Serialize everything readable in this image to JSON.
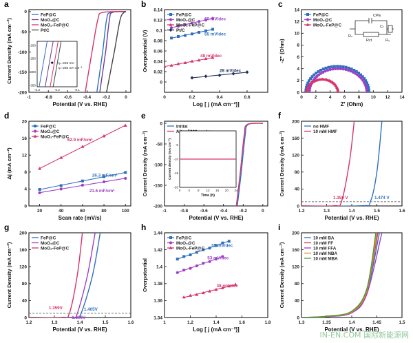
{
  "watermark": {
    "text": "IN-EN.COM 国际新能源网"
  },
  "chart_data": [
    {
      "panel": "a",
      "type": "line",
      "xlabel": "Potential (V vs. RHE)",
      "ylabel": "Current Density (mA cm⁻²)",
      "xlim": [
        -1.0,
        0.05
      ],
      "ylim": [
        -200,
        5
      ],
      "xticks": [
        -1.0,
        -0.8,
        -0.6,
        -0.4,
        -0.2,
        0.0
      ],
      "yticks": [
        0,
        -50,
        -100,
        -150,
        -200
      ],
      "legend": "top-left",
      "series": [
        {
          "name": "FeP@C",
          "color": "#2f6fbf",
          "points": [
            [
              -0.3,
              -200
            ],
            [
              -0.24,
              -100
            ],
            [
              -0.2,
              -20
            ],
            [
              -0.16,
              -2
            ],
            [
              0.0,
              0
            ]
          ]
        },
        {
          "name": "MoO₂@C",
          "color": "#6a3a9a",
          "points": [
            [
              -0.27,
              -200
            ],
            [
              -0.21,
              -100
            ],
            [
              -0.17,
              -20
            ],
            [
              -0.14,
              -2
            ],
            [
              0.0,
              0
            ]
          ]
        },
        {
          "name": "MoO₂-FeP@C",
          "color": "#d6336c",
          "points": [
            [
              -0.42,
              -200
            ],
            [
              -0.35,
              -100
            ],
            [
              -0.29,
              -20
            ],
            [
              -0.24,
              -2
            ],
            [
              0.0,
              0
            ]
          ]
        },
        {
          "name": "Pt/C",
          "color": "#444444",
          "points": [
            [
              -0.2,
              -200
            ],
            [
              -0.12,
              -100
            ],
            [
              -0.06,
              -20
            ],
            [
              -0.02,
              -2
            ],
            [
              0.0,
              0
            ]
          ]
        }
      ],
      "inset": {
        "xlim": [
          -0.3,
          -0.1
        ],
        "ylim": [
          -355,
          -185
        ],
        "xticks": [
          -0.3,
          -0.2,
          -0.1
        ],
        "yticks": [
          -200,
          -250,
          -300,
          -350
        ],
        "annotations": [
          "η=-225 mV",
          "η=-265 mA cm⁻²"
        ]
      }
    },
    {
      "panel": "b",
      "type": "scatter",
      "xlabel": "Log [ j (mA cm⁻²)]",
      "ylabel": "Overpotential (V)",
      "xlim": [
        0.0,
        0.75
      ],
      "ylim": [
        -0.02,
        0.14
      ],
      "xticks": [
        0.0,
        0.2,
        0.4,
        0.6
      ],
      "yticks": [
        0.0,
        0.02,
        0.04,
        0.06,
        0.08,
        0.1,
        0.12,
        0.14
      ],
      "legend": "top-left",
      "series": [
        {
          "name": "FeP@C",
          "color": "#2f6fbf",
          "label": "55 mV/dec",
          "x": [
            0.05,
            0.1,
            0.15,
            0.2,
            0.25,
            0.3,
            0.35
          ],
          "y": [
            0.085,
            0.088,
            0.09,
            0.093,
            0.096,
            0.099,
            0.102
          ]
        },
        {
          "name": "MoO₂@C",
          "color": "#9b3fc6",
          "label": "60 mV/dec",
          "x": [
            0.05,
            0.1,
            0.15,
            0.2,
            0.25,
            0.3,
            0.35
          ],
          "y": [
            0.105,
            0.108,
            0.111,
            0.114,
            0.117,
            0.12,
            0.123
          ]
        },
        {
          "name": "MoO₂-FeP@C",
          "color": "#d6336c",
          "label": "48 mV/dec",
          "x": [
            0.0,
            0.05,
            0.1,
            0.15,
            0.2,
            0.25,
            0.3,
            0.35
          ],
          "y": [
            0.03,
            0.032,
            0.035,
            0.037,
            0.04,
            0.042,
            0.045,
            0.047
          ]
        },
        {
          "name": "Pt/C",
          "color": "#1f2d5a",
          "label": "28 mV/dec",
          "x": [
            0.2,
            0.3,
            0.4,
            0.5,
            0.6
          ],
          "y": [
            0.008,
            0.011,
            0.013,
            0.016,
            0.019
          ]
        }
      ]
    },
    {
      "panel": "c",
      "type": "scatter",
      "xlabel": "Z' (Ohm)",
      "ylabel": "-Z'' (Ohm)",
      "xlim": [
        0,
        14
      ],
      "ylim": [
        0,
        14
      ],
      "xticks": [
        0,
        2,
        4,
        6,
        8,
        10,
        12,
        14
      ],
      "yticks": [
        0,
        2,
        4,
        6,
        8,
        10,
        12,
        14
      ],
      "legend": "top-left",
      "circuit": [
        "CPE",
        "Cₜ",
        "Rₛ",
        "Rct",
        "R₀"
      ],
      "series": [
        {
          "name": "FeP@C",
          "color": "#2f6fbf",
          "center": 5.0,
          "radius": 4.4
        },
        {
          "name": "MoO₂@C",
          "color": "#9b3fc6",
          "center": 5.1,
          "radius": 4.0
        },
        {
          "name": "MoO₂-FeP@C",
          "color": "#d6336c",
          "center": 2.9,
          "radius": 2.2
        }
      ]
    },
    {
      "panel": "d",
      "type": "scatter",
      "xlabel": "Scan rate (mV/s)",
      "ylabel": "Δj (mA cm⁻²)",
      "xlim": [
        10,
        105
      ],
      "ylim": [
        0,
        20
      ],
      "xticks": [
        20,
        40,
        60,
        80,
        100
      ],
      "yticks": [
        0,
        4,
        8,
        12,
        16,
        20
      ],
      "legend": "top-left",
      "series": [
        {
          "name": "FeP@C",
          "color": "#2f6fbf",
          "label": "26.3 mF/cm²",
          "x": [
            20,
            40,
            60,
            80,
            100
          ],
          "y": [
            3.9,
            4.8,
            5.9,
            6.9,
            7.9
          ]
        },
        {
          "name": "MoO₂@C",
          "color": "#9b3fc6",
          "label": "21.6 mF/cm²",
          "x": [
            20,
            40,
            60,
            80,
            100
          ],
          "y": [
            3.1,
            4.0,
            4.9,
            5.7,
            6.5
          ]
        },
        {
          "name": "MoO₂-FeP@C",
          "color": "#d6336c",
          "label": "62.9 mF/cm²",
          "x": [
            20,
            40,
            60,
            80,
            100
          ],
          "y": [
            8.8,
            11.4,
            14.0,
            16.5,
            19.0
          ]
        }
      ]
    },
    {
      "panel": "e",
      "type": "line",
      "xlabel": "Potential (V vs. RHE)",
      "ylabel": "Current Density (mA cm⁻²)",
      "xlim": [
        -1.0,
        0.05
      ],
      "ylim": [
        -200,
        5
      ],
      "xticks": [
        -1.0,
        -0.8,
        -0.6,
        -0.4,
        -0.2,
        0.0
      ],
      "yticks": [
        0,
        -50,
        -100,
        -150,
        -200
      ],
      "legend": "top-left",
      "series": [
        {
          "name": "Initial",
          "color": "#2f6fbf",
          "points": [
            [
              -0.26,
              -200
            ],
            [
              -0.22,
              -120
            ],
            [
              -0.18,
              -30
            ],
            [
              -0.15,
              -3
            ],
            [
              0.0,
              0
            ]
          ]
        },
        {
          "name": "After 5000 cycles",
          "color": "#d6336c",
          "points": [
            [
              -0.27,
              -200
            ],
            [
              -0.23,
              -120
            ],
            [
              -0.19,
              -30
            ],
            [
              -0.16,
              -3
            ],
            [
              0.0,
              0
            ]
          ]
        }
      ],
      "inset": {
        "xlabel": "Time (h)",
        "ylabel": "Current density (mA cm⁻²)",
        "xlim": [
          0,
          24
        ],
        "ylim": [
          -20,
          0
        ],
        "xticks": [
          0,
          4,
          8,
          12,
          16,
          20,
          24
        ],
        "yticks": [
          0,
          -5,
          -10,
          -15,
          -20
        ],
        "series": [
          {
            "color": "#d6336c",
            "x": [
              0,
              24
            ],
            "y": [
              -10,
              -10
            ]
          }
        ]
      }
    },
    {
      "panel": "f",
      "type": "line",
      "xlabel": "Potential (V vs. RHE)",
      "ylabel": "Current Density (mA cm⁻²)",
      "xlim": [
        1.2,
        1.6
      ],
      "ylim": [
        0,
        200
      ],
      "xticks": [
        1.2,
        1.3,
        1.4,
        1.5,
        1.6
      ],
      "yticks": [
        0,
        40,
        80,
        120,
        160,
        200
      ],
      "legend": "top-left",
      "hline": 10,
      "series": [
        {
          "name": "no HMF",
          "color": "#2f6fbf",
          "label": "1.474 V",
          "points": [
            [
              1.2,
              0
            ],
            [
              1.44,
              0.5
            ],
            [
              1.474,
              10
            ],
            [
              1.5,
              80
            ],
            [
              1.52,
              200
            ]
          ]
        },
        {
          "name": "10 mM HMF",
          "color": "#d6336c",
          "label": "1.359 V",
          "points": [
            [
              1.2,
              0
            ],
            [
              1.33,
              0.5
            ],
            [
              1.359,
              10
            ],
            [
              1.39,
              100
            ],
            [
              1.41,
              200
            ]
          ]
        }
      ]
    },
    {
      "panel": "g",
      "type": "line",
      "xlabel": "Potential (V vs. RHE)",
      "ylabel": "Current Density (mA cm⁻²)",
      "xlim": [
        1.2,
        1.6
      ],
      "ylim": [
        0,
        200
      ],
      "xticks": [
        1.2,
        1.3,
        1.4,
        1.5,
        1.6
      ],
      "yticks": [
        0,
        40,
        80,
        120,
        160,
        200
      ],
      "legend": "top-left",
      "hline": 10,
      "series": [
        {
          "name": "FeP@C",
          "color": "#2f6fbf",
          "label": "1.405V",
          "points": [
            [
              1.2,
              0
            ],
            [
              1.38,
              0.5
            ],
            [
              1.405,
              10
            ],
            [
              1.45,
              100
            ],
            [
              1.48,
              200
            ]
          ]
        },
        {
          "name": "MoO₂@C",
          "color": "#9b3fc6",
          "label": "1.390V",
          "points": [
            [
              1.2,
              0
            ],
            [
              1.37,
              0.5
            ],
            [
              1.39,
              10
            ],
            [
              1.43,
              100
            ],
            [
              1.46,
              200
            ]
          ]
        },
        {
          "name": "MoO₂-FeP@C",
          "color": "#d6336c",
          "label": "1.359V",
          "points": [
            [
              1.2,
              0
            ],
            [
              1.33,
              0.5
            ],
            [
              1.359,
              10
            ],
            [
              1.39,
              100
            ],
            [
              1.41,
              200
            ]
          ]
        }
      ]
    },
    {
      "panel": "h",
      "type": "scatter",
      "xlabel": "Log [ j (mA cm⁻²)]",
      "ylabel": "Overpotential",
      "xlim": [
        1.0,
        1.8
      ],
      "ylim": [
        1.34,
        1.44
      ],
      "xticks": [
        1.0,
        1.2,
        1.4,
        1.6,
        1.8
      ],
      "yticks": [
        1.34,
        1.36,
        1.38,
        1.4,
        1.42,
        1.44
      ],
      "legend": "top-left",
      "series": [
        {
          "name": "FeP@C",
          "color": "#2f6fbf",
          "label": "55 mV/dec",
          "x": [
            1.1,
            1.15,
            1.2,
            1.25,
            1.3,
            1.35,
            1.4,
            1.45,
            1.5
          ],
          "y": [
            1.409,
            1.412,
            1.414,
            1.417,
            1.42,
            1.422,
            1.425,
            1.428,
            1.43
          ]
        },
        {
          "name": "MoO₂@C",
          "color": "#9b3fc6",
          "label": "53 mV/dec",
          "x": [
            1.1,
            1.15,
            1.2,
            1.25,
            1.3,
            1.35,
            1.4,
            1.45
          ],
          "y": [
            1.393,
            1.396,
            1.398,
            1.401,
            1.404,
            1.406,
            1.409,
            1.412
          ]
        },
        {
          "name": "MoO₂-FeP@C",
          "color": "#d6336c",
          "label": "38 mV/dec",
          "x": [
            1.15,
            1.2,
            1.25,
            1.3,
            1.35,
            1.4,
            1.45,
            1.5,
            1.55
          ],
          "y": [
            1.364,
            1.366,
            1.367,
            1.369,
            1.371,
            1.373,
            1.375,
            1.377,
            1.379
          ]
        }
      ]
    },
    {
      "panel": "i",
      "type": "line",
      "xlabel": "Potential (V vs. RHE)",
      "ylabel": "Current Density (mA cm⁻²)",
      "xlim": [
        1.3,
        1.5
      ],
      "ylim": [
        0,
        200
      ],
      "xticks": [
        1.3,
        1.35,
        1.4,
        1.45,
        1.5
      ],
      "yticks": [
        0,
        40,
        80,
        120,
        160,
        200
      ],
      "legend": "top-left",
      "series": [
        {
          "name": "10 mM BA",
          "color": "#2f6fbf",
          "points": [
            [
              1.3,
              0
            ],
            [
              1.35,
              2
            ],
            [
              1.4,
              12
            ],
            [
              1.43,
              60
            ],
            [
              1.455,
              200
            ]
          ]
        },
        {
          "name": "10 mM FF",
          "color": "#d6336c",
          "points": [
            [
              1.3,
              0
            ],
            [
              1.35,
              3
            ],
            [
              1.4,
              14
            ],
            [
              1.43,
              65
            ],
            [
              1.452,
              200
            ]
          ]
        },
        {
          "name": "10 mM FFA",
          "color": "#9b3fc6",
          "points": [
            [
              1.3,
              0
            ],
            [
              1.35,
              2
            ],
            [
              1.4,
              11
            ],
            [
              1.43,
              55
            ],
            [
              1.46,
              200
            ]
          ]
        },
        {
          "name": "10 mM NBA",
          "color": "#e08a1e",
          "points": [
            [
              1.3,
              0
            ],
            [
              1.35,
              2.5
            ],
            [
              1.4,
              13
            ],
            [
              1.43,
              62
            ],
            [
              1.45,
              200
            ]
          ]
        },
        {
          "name": "10 mM MBA",
          "color": "#4a9a3a",
          "points": [
            [
              1.3,
              0
            ],
            [
              1.35,
              3
            ],
            [
              1.4,
              15
            ],
            [
              1.43,
              68
            ],
            [
              1.448,
              200
            ]
          ]
        }
      ]
    }
  ]
}
